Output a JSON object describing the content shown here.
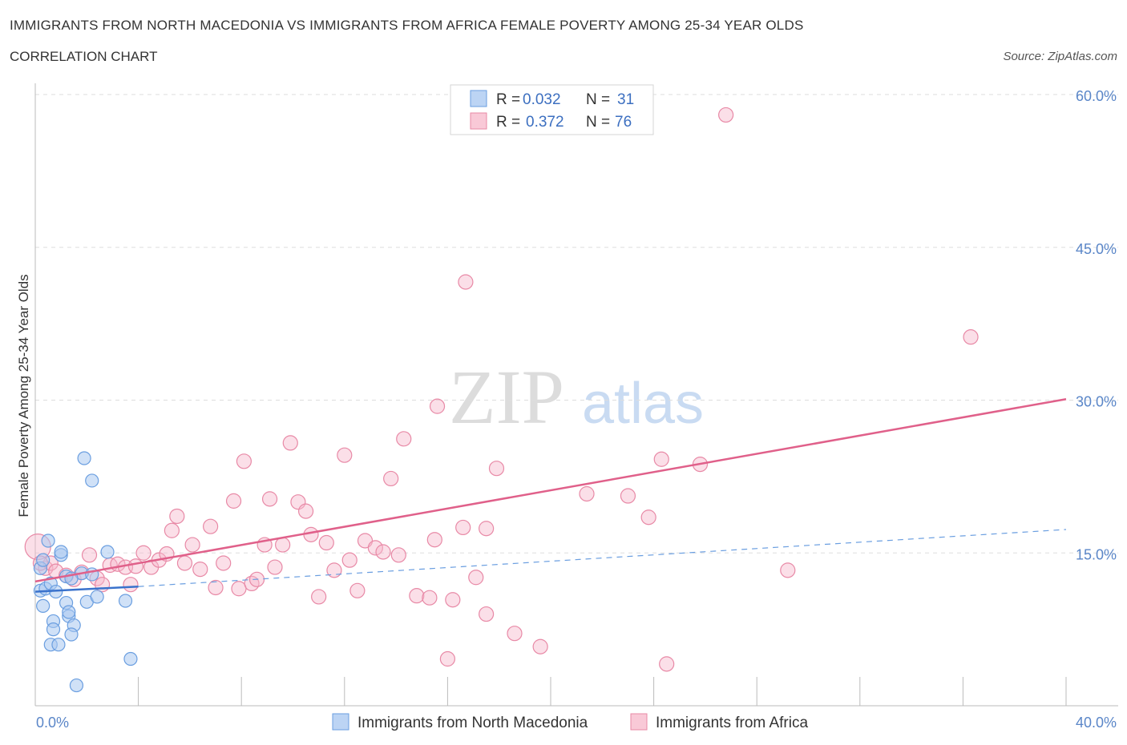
{
  "header": {
    "title": "IMMIGRANTS FROM NORTH MACEDONIA VS IMMIGRANTS FROM AFRICA FEMALE POVERTY AMONG 25-34 YEAR OLDS",
    "subtitle": "CORRELATION CHART",
    "source": "Source: ZipAtlas.com"
  },
  "watermark": {
    "zip": "ZIP",
    "atlas": "atlas"
  },
  "legend": {
    "r_label": "R =",
    "n_label": "N =",
    "series": [
      {
        "r": "0.032",
        "n": "31"
      },
      {
        "r": "0.372",
        "n": "76"
      }
    ]
  },
  "colors": {
    "blue_fill": "#a9c8f0",
    "blue_stroke": "#6a9ee0",
    "blue_line": "#3a72cc",
    "pink_fill": "#f6b9cb",
    "pink_stroke": "#e889a6",
    "pink_line": "#e0608a",
    "grid": "#dddddd",
    "tick_text": "#5a86c8"
  },
  "chart_data": {
    "type": "scatter",
    "title": "IMMIGRANTS FROM NORTH MACEDONIA VS IMMIGRANTS FROM AFRICA FEMALE POVERTY AMONG 25-34 YEAR OLDS",
    "subtitle": "CORRELATION CHART",
    "xlabel": "",
    "ylabel": "Female Poverty Among 25-34 Year Olds",
    "xlim": [
      0,
      40
    ],
    "ylim": [
      0,
      60
    ],
    "x_tick_labels": [
      {
        "value": 0,
        "label": "0.0%"
      },
      {
        "value": 40,
        "label": "40.0%"
      }
    ],
    "y_tick_labels": [
      {
        "value": 15,
        "label": "15.0%"
      },
      {
        "value": 30,
        "label": "30.0%"
      },
      {
        "value": 45,
        "label": "45.0%"
      },
      {
        "value": 60,
        "label": "60.0%"
      }
    ],
    "series": [
      {
        "name": "Immigrants from North Macedonia",
        "r": 0.032,
        "n": 31,
        "trend_solid": [
          [
            0,
            11.2
          ],
          [
            4,
            11.7
          ]
        ],
        "trend_dashed": [
          [
            4,
            11.7
          ],
          [
            40,
            17.3
          ]
        ],
        "points": [
          [
            0.2,
            13.5
          ],
          [
            0.3,
            14.3
          ],
          [
            0.2,
            11.3
          ],
          [
            0.4,
            11.5
          ],
          [
            0.5,
            16.2
          ],
          [
            0.6,
            12.0
          ],
          [
            0.3,
            9.8
          ],
          [
            0.8,
            11.2
          ],
          [
            0.7,
            8.3
          ],
          [
            0.7,
            7.5
          ],
          [
            0.6,
            6.0
          ],
          [
            0.9,
            6.0
          ],
          [
            1.0,
            14.8
          ],
          [
            1.0,
            15.1
          ],
          [
            1.2,
            12.7
          ],
          [
            1.2,
            10.1
          ],
          [
            1.3,
            8.8
          ],
          [
            1.3,
            9.2
          ],
          [
            1.5,
            7.9
          ],
          [
            1.4,
            7.0
          ],
          [
            1.6,
            2.0
          ],
          [
            1.8,
            13.0
          ],
          [
            2.0,
            10.2
          ],
          [
            2.2,
            12.9
          ],
          [
            2.4,
            10.7
          ],
          [
            1.9,
            24.3
          ],
          [
            2.2,
            22.1
          ],
          [
            2.8,
            15.1
          ],
          [
            3.5,
            10.3
          ],
          [
            3.7,
            4.6
          ],
          [
            1.4,
            12.5
          ]
        ]
      },
      {
        "name": "Immigrants from Africa",
        "r": 0.372,
        "n": 76,
        "trend_solid": [
          [
            0,
            12.2
          ],
          [
            40,
            30.1
          ]
        ],
        "points": [
          [
            0.1,
            15.6
          ],
          [
            0.4,
            13.5
          ],
          [
            0.6,
            14.0
          ],
          [
            0.8,
            13.2
          ],
          [
            1.2,
            12.8
          ],
          [
            1.5,
            12.4
          ],
          [
            1.8,
            13.1
          ],
          [
            2.1,
            14.8
          ],
          [
            2.4,
            12.5
          ],
          [
            2.6,
            11.9
          ],
          [
            2.9,
            13.8
          ],
          [
            3.2,
            13.9
          ],
          [
            3.5,
            13.6
          ],
          [
            3.7,
            11.9
          ],
          [
            3.9,
            13.7
          ],
          [
            4.2,
            15.0
          ],
          [
            4.5,
            13.6
          ],
          [
            4.8,
            14.3
          ],
          [
            5.1,
            14.9
          ],
          [
            5.3,
            17.2
          ],
          [
            5.5,
            18.6
          ],
          [
            5.8,
            14.0
          ],
          [
            6.1,
            15.8
          ],
          [
            6.4,
            13.4
          ],
          [
            6.8,
            17.6
          ],
          [
            7.0,
            11.6
          ],
          [
            7.3,
            14.0
          ],
          [
            7.7,
            20.1
          ],
          [
            7.9,
            11.5
          ],
          [
            8.1,
            24.0
          ],
          [
            8.4,
            12.0
          ],
          [
            8.6,
            12.4
          ],
          [
            8.9,
            15.8
          ],
          [
            9.1,
            20.3
          ],
          [
            9.3,
            13.6
          ],
          [
            9.6,
            15.8
          ],
          [
            9.9,
            25.8
          ],
          [
            10.2,
            20.0
          ],
          [
            10.5,
            19.1
          ],
          [
            10.7,
            16.8
          ],
          [
            11.0,
            10.7
          ],
          [
            11.3,
            16.0
          ],
          [
            11.6,
            13.3
          ],
          [
            12.0,
            24.6
          ],
          [
            12.2,
            14.3
          ],
          [
            12.5,
            11.3
          ],
          [
            12.8,
            16.2
          ],
          [
            13.2,
            15.5
          ],
          [
            13.5,
            15.1
          ],
          [
            13.8,
            22.3
          ],
          [
            14.1,
            14.8
          ],
          [
            14.3,
            26.2
          ],
          [
            14.8,
            10.8
          ],
          [
            15.3,
            10.6
          ],
          [
            15.5,
            16.3
          ],
          [
            15.6,
            29.4
          ],
          [
            16.0,
            4.6
          ],
          [
            16.2,
            10.4
          ],
          [
            16.6,
            17.5
          ],
          [
            16.7,
            41.6
          ],
          [
            17.1,
            12.6
          ],
          [
            17.5,
            17.4
          ],
          [
            17.5,
            9.0
          ],
          [
            17.9,
            23.3
          ],
          [
            18.6,
            7.1
          ],
          [
            19.6,
            5.8
          ],
          [
            21.4,
            20.8
          ],
          [
            23.0,
            20.6
          ],
          [
            23.8,
            18.5
          ],
          [
            24.3,
            24.2
          ],
          [
            24.5,
            4.1
          ],
          [
            25.8,
            23.7
          ],
          [
            26.8,
            58.0
          ],
          [
            29.2,
            13.3
          ],
          [
            36.3,
            36.2
          ],
          [
            0.2,
            14.0
          ]
        ]
      }
    ]
  },
  "bottom_legend": [
    {
      "label": "Immigrants from North Macedonia"
    },
    {
      "label": "Immigrants from Africa"
    }
  ]
}
